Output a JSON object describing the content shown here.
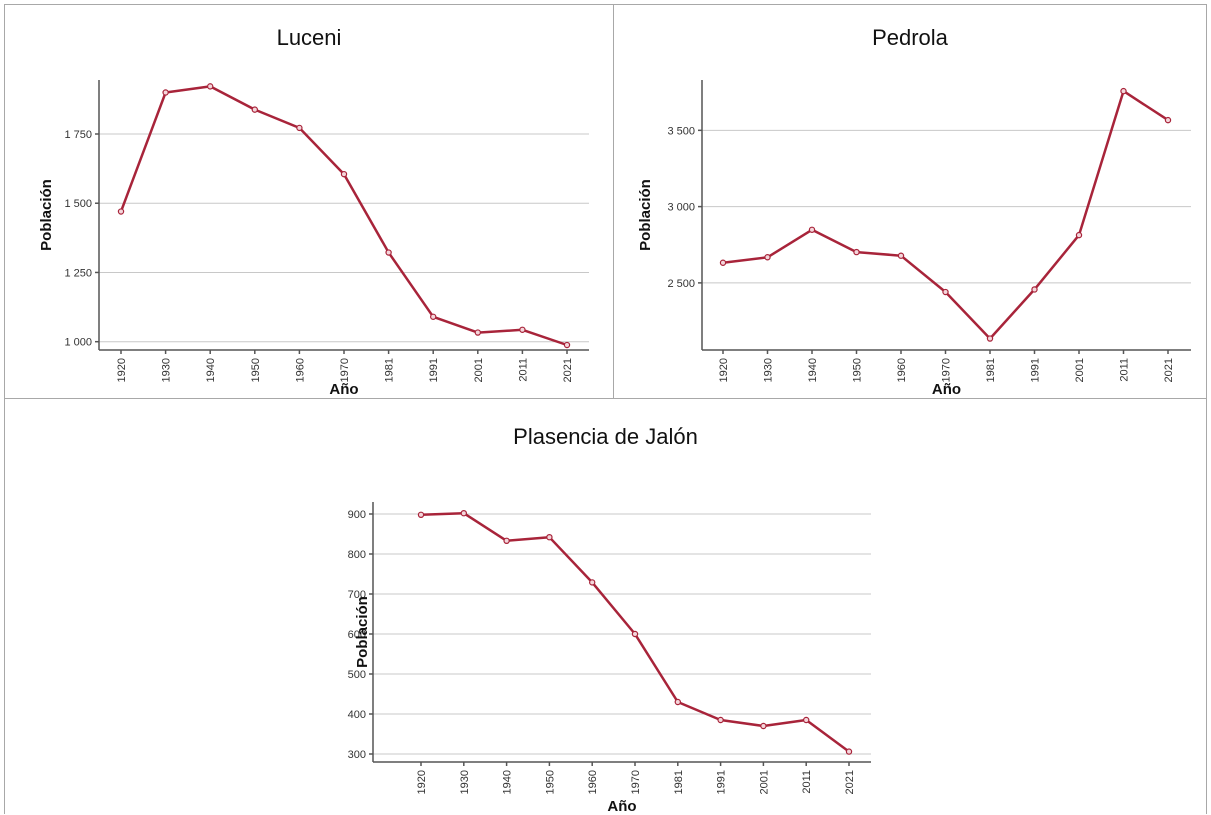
{
  "chart_data": [
    {
      "type": "line",
      "title": "Luceni",
      "xlabel": "Año",
      "ylabel": "Población",
      "categories": [
        "1920",
        "1930",
        "1940",
        "1950",
        "1960",
        "1970",
        "1981",
        "1991",
        "2001",
        "2011",
        "2021"
      ],
      "series": [
        {
          "values": [
            1470,
            1900,
            1922,
            1838,
            1772,
            1605,
            1322,
            1090,
            1033,
            1043,
            988
          ]
        }
      ],
      "ylim": [
        970,
        1945
      ],
      "yticks": [
        1000,
        1250,
        1500,
        1750
      ],
      "ytick_labels": [
        "1 000",
        "1 250",
        "1 500",
        "1 750"
      ],
      "grid": true,
      "color": "#a8243a"
    },
    {
      "type": "line",
      "title": "Pedrola",
      "xlabel": "Año",
      "ylabel": "Población",
      "categories": [
        "1920",
        "1930",
        "1940",
        "1950",
        "1960",
        "1970",
        "1981",
        "1991",
        "2001",
        "2011",
        "2021"
      ],
      "series": [
        {
          "values": [
            2632,
            2668,
            2848,
            2702,
            2678,
            2440,
            2135,
            2457,
            2813,
            3757,
            3567
          ]
        }
      ],
      "ylim": [
        2060,
        3830
      ],
      "yticks": [
        2500,
        3000,
        3500
      ],
      "ytick_labels": [
        "2 500",
        "3 000",
        "3 500"
      ],
      "grid": true,
      "color": "#a8243a"
    },
    {
      "type": "line",
      "title": "Plasencia de Jalón",
      "xlabel": "Año",
      "ylabel": "Población",
      "categories": [
        "1920",
        "1930",
        "1940",
        "1950",
        "1960",
        "1970",
        "1981",
        "1991",
        "2001",
        "2011",
        "2021"
      ],
      "series": [
        {
          "values": [
            898,
            902,
            833,
            842,
            729,
            600,
            430,
            385,
            370,
            385,
            306
          ]
        }
      ],
      "ylim": [
        280,
        930
      ],
      "yticks": [
        300,
        400,
        500,
        600,
        700,
        800,
        900
      ],
      "ytick_labels": [
        "300",
        "400",
        "500",
        "600",
        "700",
        "800",
        "900"
      ],
      "grid": true,
      "color": "#a8243a"
    }
  ]
}
